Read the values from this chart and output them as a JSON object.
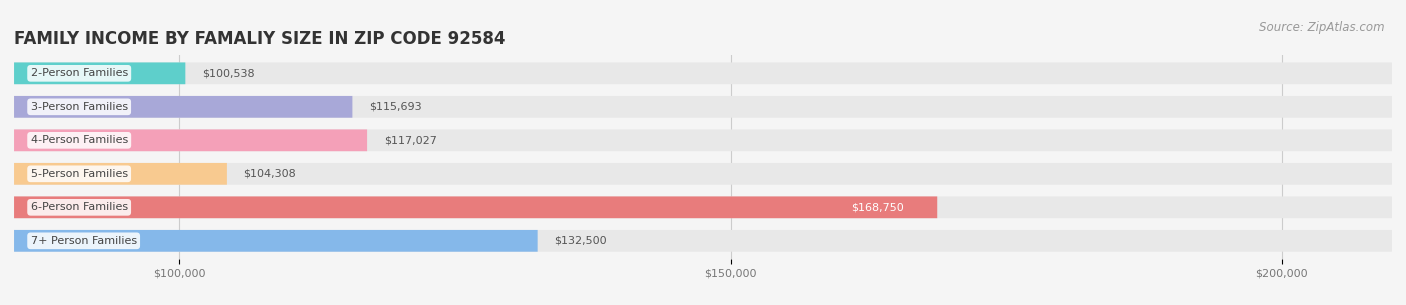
{
  "title": "FAMILY INCOME BY FAMALIY SIZE IN ZIP CODE 92584",
  "source": "Source: ZipAtlas.com",
  "categories": [
    "2-Person Families",
    "3-Person Families",
    "4-Person Families",
    "5-Person Families",
    "6-Person Families",
    "7+ Person Families"
  ],
  "values": [
    100538,
    115693,
    117027,
    104308,
    168750,
    132500
  ],
  "bar_colors": [
    "#5ecfcb",
    "#a8a8d8",
    "#f4a0b8",
    "#f8ca90",
    "#e87c7c",
    "#85b8ea"
  ],
  "label_colors": [
    "#555555",
    "#555555",
    "#555555",
    "#555555",
    "#ffffff",
    "#555555"
  ],
  "xlim": [
    85000,
    210000
  ],
  "xticks": [
    100000,
    150000,
    200000
  ],
  "xtick_labels": [
    "$100,000",
    "$150,000",
    "$200,000"
  ],
  "background_color": "#f5f5f5",
  "bar_bg_color": "#e8e8e8",
  "title_fontsize": 12,
  "label_fontsize": 8,
  "value_fontsize": 8,
  "source_fontsize": 8.5
}
